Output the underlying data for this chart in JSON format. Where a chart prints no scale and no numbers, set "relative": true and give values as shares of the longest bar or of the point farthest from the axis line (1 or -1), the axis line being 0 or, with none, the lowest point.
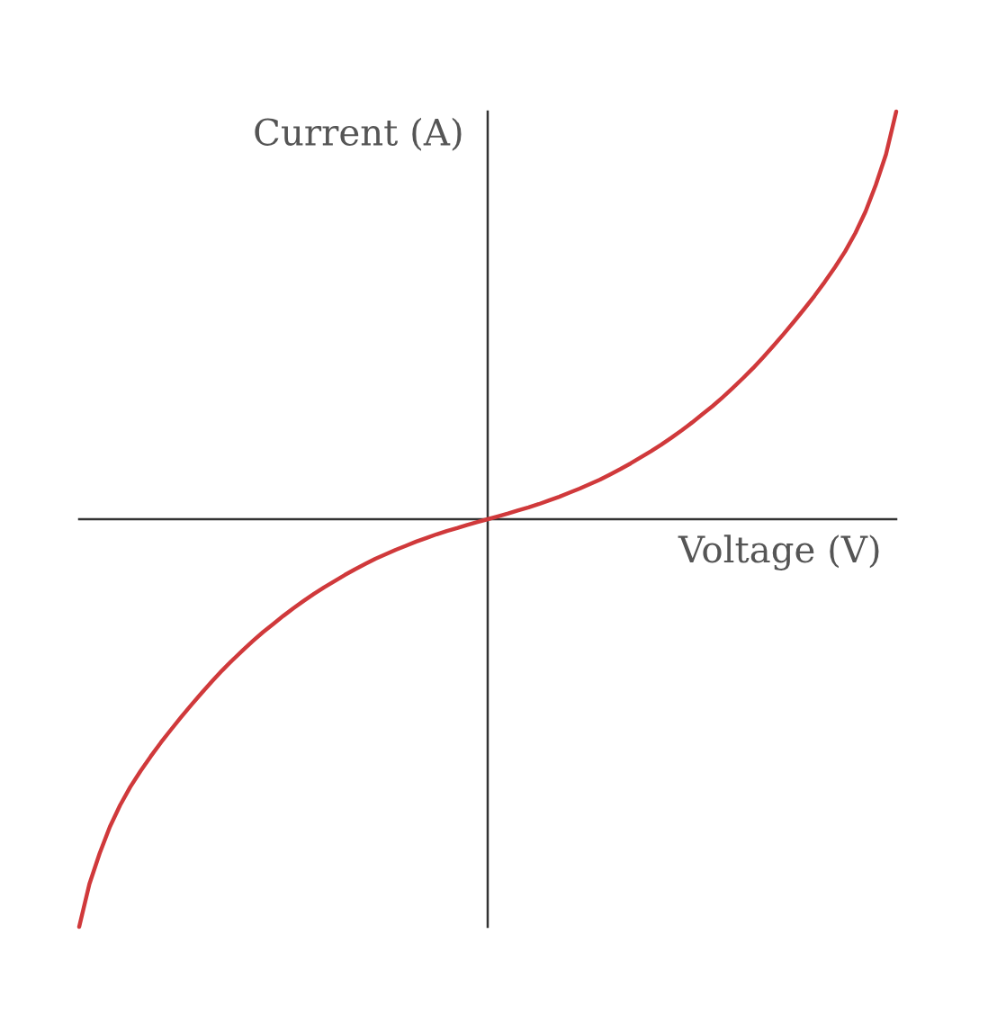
{
  "chart_data": {
    "type": "line",
    "xlabel": "Voltage (V)",
    "ylabel": "Current (A)",
    "relative": true,
    "categories": [
      null,
      null,
      null,
      null,
      null,
      null,
      null,
      null,
      null,
      null,
      null,
      null,
      null,
      null,
      null,
      null,
      null,
      null,
      null,
      null,
      null,
      null,
      null,
      null,
      null,
      null,
      null,
      null,
      null,
      null,
      null,
      null,
      null,
      null,
      null,
      null,
      null,
      null,
      null,
      null,
      null,
      null,
      null,
      null,
      null,
      null,
      null,
      null,
      null,
      null,
      null,
      null,
      null,
      null,
      null,
      null,
      null,
      null,
      null,
      null,
      null,
      null,
      null,
      null,
      null,
      null,
      null,
      null,
      null,
      null,
      null,
      null,
      null,
      null,
      null,
      null,
      null,
      null,
      null,
      null,
      null
    ],
    "series": [
      {
        "color": "#d0393b",
        "values": [
          -1.0,
          -0.895,
          -0.82,
          -0.755,
          -0.702,
          -0.657,
          -0.618,
          -0.582,
          -0.548,
          -0.516,
          -0.485,
          -0.455,
          -0.426,
          -0.398,
          -0.371,
          -0.346,
          -0.322,
          -0.299,
          -0.277,
          -0.257,
          -0.237,
          -0.218,
          -0.2,
          -0.183,
          -0.167,
          -0.152,
          -0.137,
          -0.123,
          -0.11,
          -0.097,
          -0.086,
          -0.075,
          -0.065,
          -0.055,
          -0.046,
          -0.037,
          -0.029,
          -0.022,
          -0.014,
          -0.007,
          0.0,
          0.007,
          0.014,
          0.022,
          0.029,
          0.037,
          0.046,
          0.055,
          0.065,
          0.075,
          0.086,
          0.097,
          0.11,
          0.123,
          0.137,
          0.152,
          0.167,
          0.183,
          0.2,
          0.218,
          0.237,
          0.257,
          0.277,
          0.299,
          0.322,
          0.346,
          0.371,
          0.398,
          0.426,
          0.455,
          0.485,
          0.516,
          0.548,
          0.582,
          0.618,
          0.657,
          0.702,
          0.755,
          0.82,
          0.895,
          1.0
        ]
      }
    ]
  }
}
